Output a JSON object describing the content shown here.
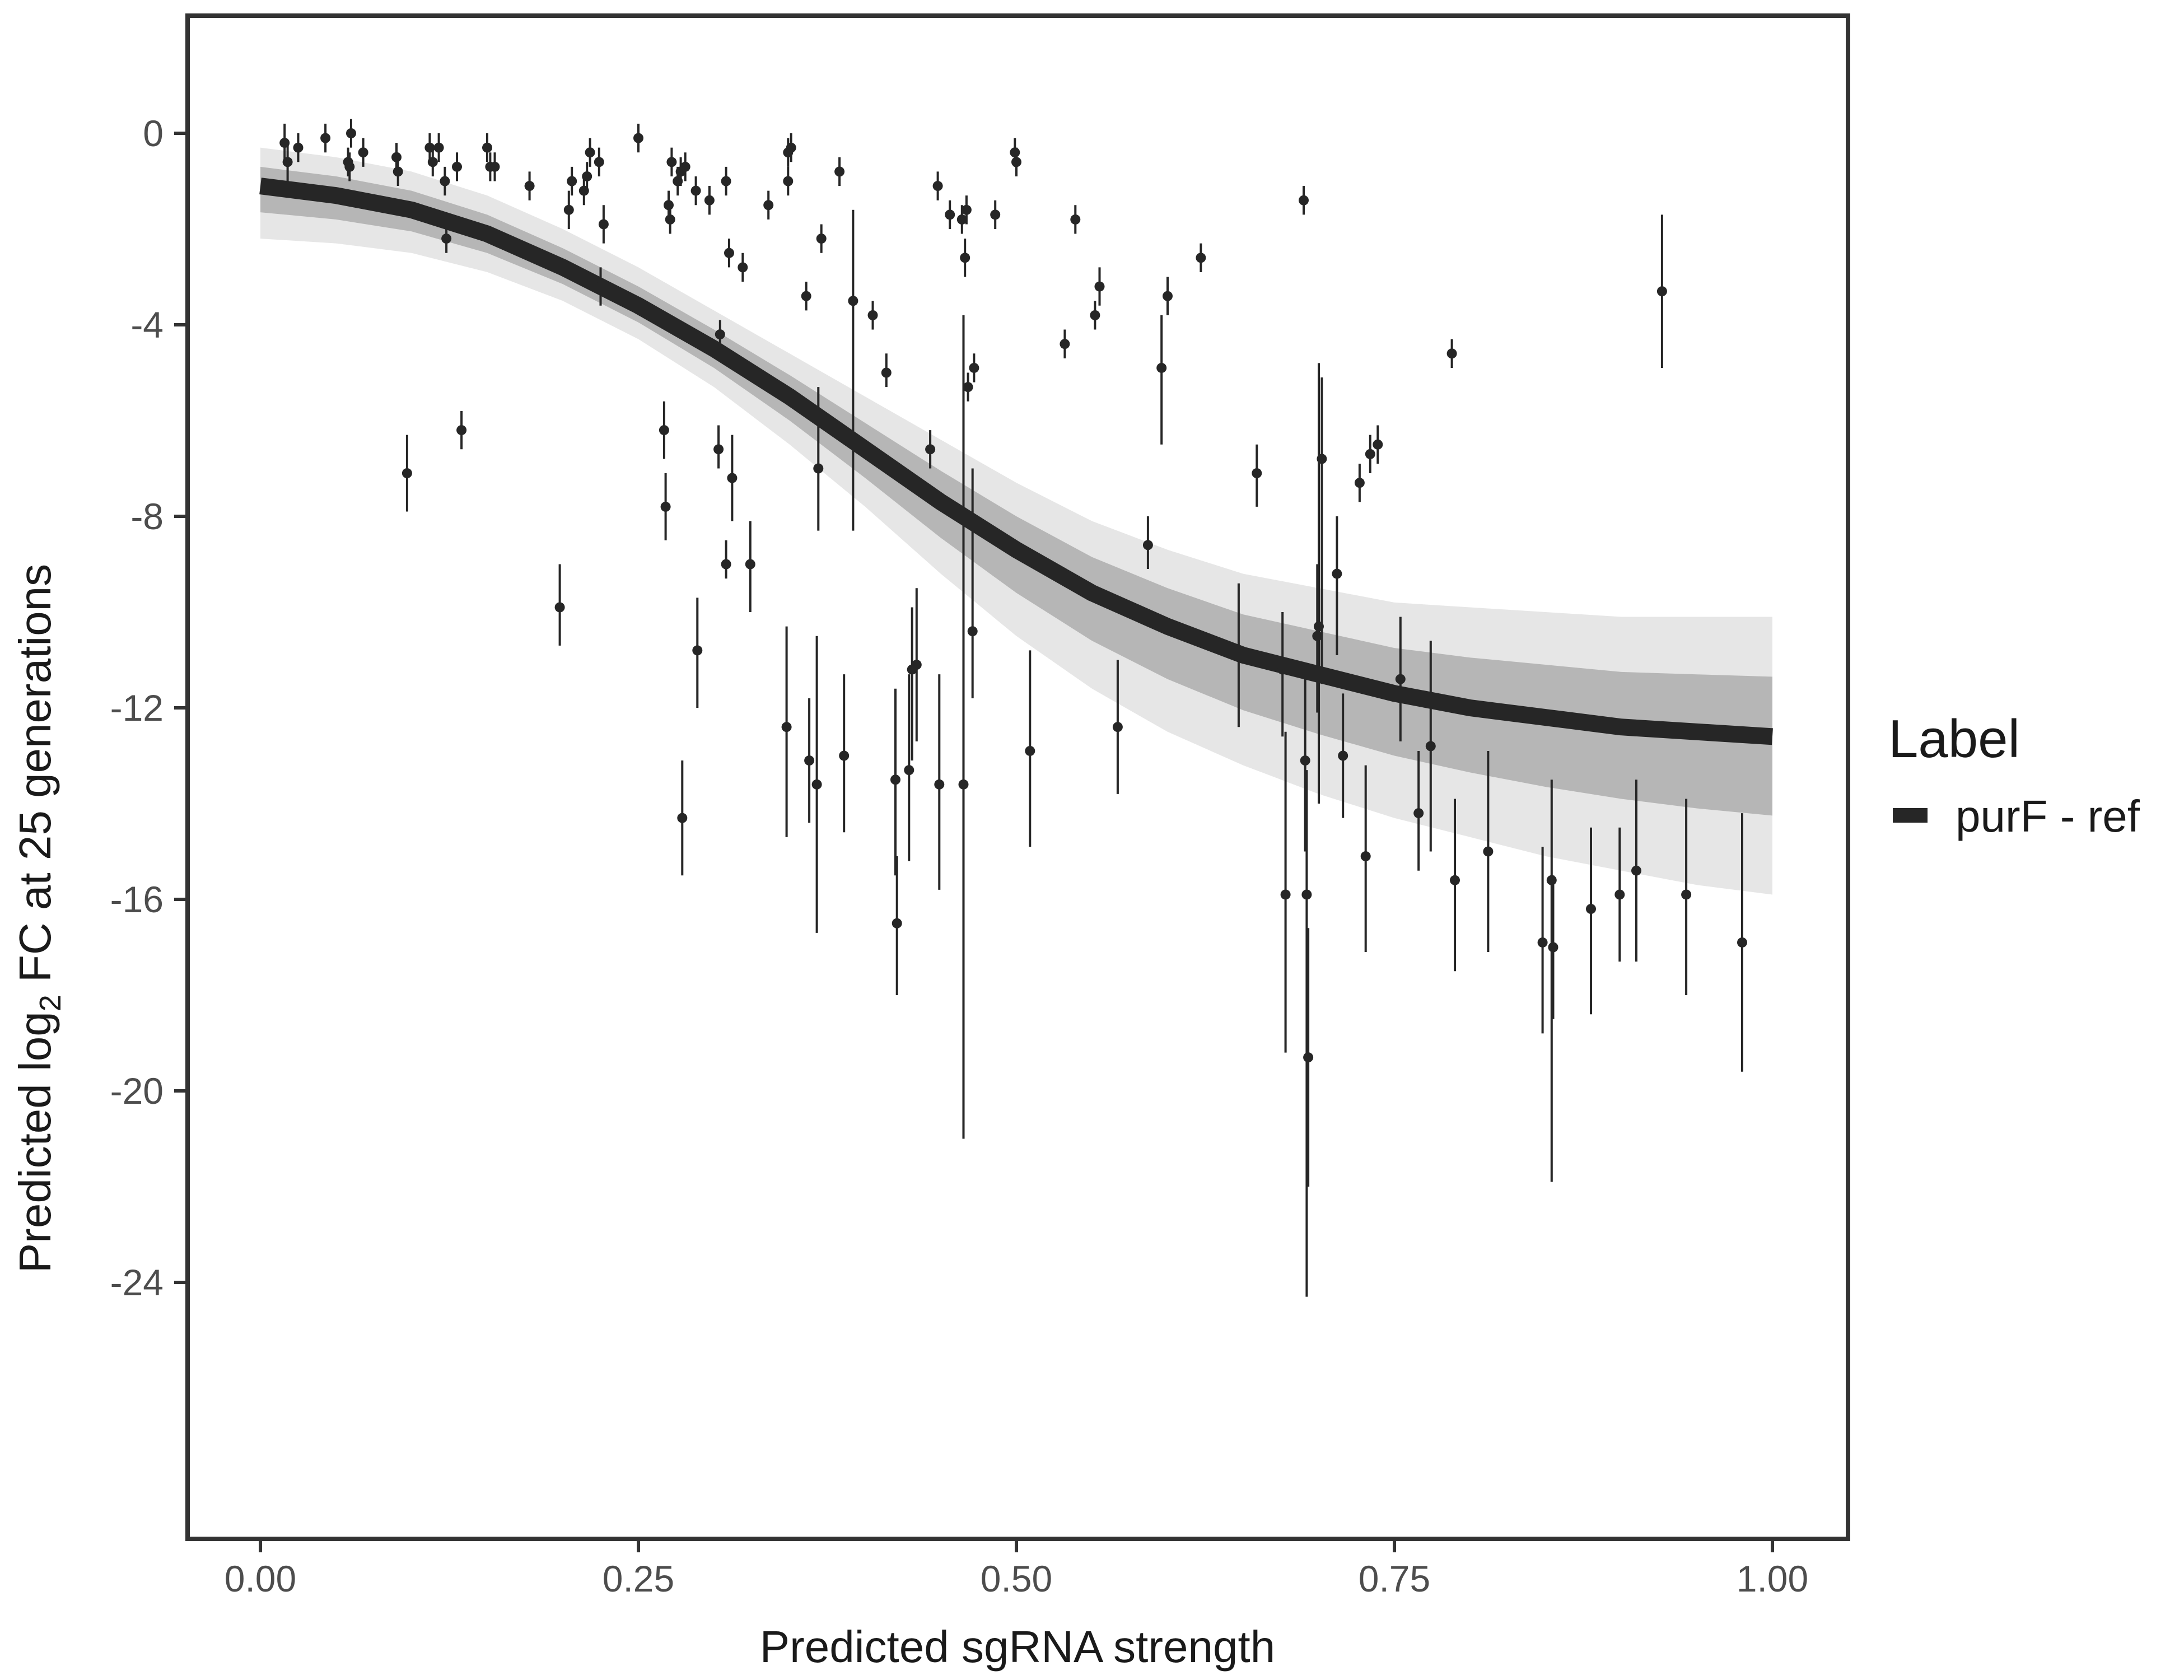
{
  "chart_data": {
    "type": "scatter",
    "title": "",
    "xlabel": "Predicted sgRNA strength",
    "ylabel_parts": {
      "prefix": "Predicted  log",
      "subscript": "2",
      "suffix": " FC at 25 generations"
    },
    "xlim": [
      -0.1,
      2.5
    ],
    "xlim_data": [
      -0.125,
      1.1
    ],
    "ylim": [
      -29.5,
      2.5
    ],
    "x_ticks": [
      0.0,
      0.25,
      0.5,
      0.75,
      1.0
    ],
    "x_tick_labels": [
      "0.00",
      "0.25",
      "0.50",
      "0.75",
      "1.00"
    ],
    "y_ticks": [
      0,
      -4,
      -8,
      -12,
      -16,
      -20,
      -24
    ],
    "y_tick_labels": [
      "0",
      "-4",
      "-8",
      "-12",
      "-16",
      "-20",
      "-24"
    ],
    "grid": false,
    "legend": {
      "title": "Label",
      "position": "right",
      "entries": [
        {
          "name": "purF - ref",
          "color": "#262626"
        }
      ]
    },
    "colors": {
      "fit_line": "#262626",
      "ribbon": "#a6a6a6",
      "points": "#262626",
      "border": "#333333"
    },
    "fit_curve": {
      "name": "purF - ref",
      "x": [
        0.0,
        0.05,
        0.1,
        0.15,
        0.2,
        0.25,
        0.3,
        0.35,
        0.4,
        0.45,
        0.5,
        0.55,
        0.6,
        0.65,
        0.7,
        0.75,
        0.8,
        0.85,
        0.9,
        0.95,
        1.0
      ],
      "y": [
        -1.1,
        -1.3,
        -1.6,
        -2.1,
        -2.8,
        -3.6,
        -4.5,
        -5.5,
        -6.6,
        -7.7,
        -8.7,
        -9.6,
        -10.3,
        -10.9,
        -11.3,
        -11.7,
        -12.0,
        -12.2,
        -12.4,
        -12.5,
        -12.6
      ],
      "lower": [
        -2.2,
        -2.3,
        -2.5,
        -2.9,
        -3.5,
        -4.3,
        -5.3,
        -6.5,
        -7.8,
        -9.2,
        -10.5,
        -11.6,
        -12.5,
        -13.2,
        -13.8,
        -14.3,
        -14.7,
        -15.1,
        -15.4,
        -15.7,
        -15.9
      ],
      "upper": [
        -0.3,
        -0.5,
        -0.8,
        -1.3,
        -2.0,
        -2.8,
        -3.7,
        -4.6,
        -5.5,
        -6.4,
        -7.3,
        -8.1,
        -8.7,
        -9.2,
        -9.5,
        -9.8,
        -9.9,
        -10.0,
        -10.1,
        -10.1,
        -10.1
      ]
    },
    "points": [
      {
        "x": 0.016,
        "y": -0.2,
        "lo": -0.6,
        "hi": 0.2
      },
      {
        "x": 0.018,
        "y": -0.6,
        "lo": -1.0,
        "hi": -0.2
      },
      {
        "x": 0.025,
        "y": -0.3,
        "lo": -0.6,
        "hi": 0.0
      },
      {
        "x": 0.043,
        "y": -0.1,
        "lo": -0.4,
        "hi": 0.2
      },
      {
        "x": 0.058,
        "y": -0.6,
        "lo": -0.9,
        "hi": -0.3
      },
      {
        "x": 0.059,
        "y": -0.7,
        "lo": -1.0,
        "hi": -0.4
      },
      {
        "x": 0.06,
        "y": 0.0,
        "lo": -0.3,
        "hi": 0.3
      },
      {
        "x": 0.068,
        "y": -0.4,
        "lo": -0.7,
        "hi": -0.1
      },
      {
        "x": 0.09,
        "y": -0.5,
        "lo": -0.8,
        "hi": -0.2
      },
      {
        "x": 0.091,
        "y": -0.8,
        "lo": -1.1,
        "hi": -0.5
      },
      {
        "x": 0.097,
        "y": -7.1,
        "lo": -7.9,
        "hi": -6.3
      },
      {
        "x": 0.112,
        "y": -0.3,
        "lo": -0.6,
        "hi": 0.0
      },
      {
        "x": 0.114,
        "y": -0.6,
        "lo": -0.9,
        "hi": -0.3
      },
      {
        "x": 0.118,
        "y": -0.3,
        "lo": -0.6,
        "hi": 0.0
      },
      {
        "x": 0.122,
        "y": -1.0,
        "lo": -1.3,
        "hi": -0.7
      },
      {
        "x": 0.123,
        "y": -2.2,
        "lo": -2.5,
        "hi": -1.9
      },
      {
        "x": 0.13,
        "y": -0.7,
        "lo": -1.0,
        "hi": -0.4
      },
      {
        "x": 0.133,
        "y": -6.2,
        "lo": -6.6,
        "hi": -5.8
      },
      {
        "x": 0.15,
        "y": -0.3,
        "lo": -0.6,
        "hi": 0.0
      },
      {
        "x": 0.152,
        "y": -0.7,
        "lo": -1.0,
        "hi": -0.4
      },
      {
        "x": 0.155,
        "y": -0.7,
        "lo": -1.0,
        "hi": -0.4
      },
      {
        "x": 0.178,
        "y": -1.1,
        "lo": -1.4,
        "hi": -0.8
      },
      {
        "x": 0.198,
        "y": -9.9,
        "lo": -10.7,
        "hi": -9.0
      },
      {
        "x": 0.204,
        "y": -1.6,
        "lo": -2.0,
        "hi": -1.2
      },
      {
        "x": 0.206,
        "y": -1.0,
        "lo": -1.3,
        "hi": -0.7
      },
      {
        "x": 0.214,
        "y": -1.2,
        "lo": -1.5,
        "hi": -0.9
      },
      {
        "x": 0.216,
        "y": -0.9,
        "lo": -1.2,
        "hi": -0.6
      },
      {
        "x": 0.218,
        "y": -0.4,
        "lo": -0.7,
        "hi": -0.1
      },
      {
        "x": 0.224,
        "y": -0.6,
        "lo": -0.9,
        "hi": -0.3
      },
      {
        "x": 0.225,
        "y": -3.2,
        "lo": -3.6,
        "hi": -2.8
      },
      {
        "x": 0.227,
        "y": -1.9,
        "lo": -2.3,
        "hi": -1.5
      },
      {
        "x": 0.25,
        "y": -0.1,
        "lo": -0.4,
        "hi": 0.2
      },
      {
        "x": 0.267,
        "y": -6.2,
        "lo": -6.8,
        "hi": -5.6
      },
      {
        "x": 0.268,
        "y": -7.8,
        "lo": -8.5,
        "hi": -7.1
      },
      {
        "x": 0.27,
        "y": -1.5,
        "lo": -1.8,
        "hi": -1.2
      },
      {
        "x": 0.271,
        "y": -1.8,
        "lo": -2.1,
        "hi": -1.5
      },
      {
        "x": 0.272,
        "y": -0.6,
        "lo": -0.9,
        "hi": -0.3
      },
      {
        "x": 0.276,
        "y": -1.0,
        "lo": -1.3,
        "hi": -0.7
      },
      {
        "x": 0.278,
        "y": -0.8,
        "lo": -1.1,
        "hi": -0.5
      },
      {
        "x": 0.279,
        "y": -14.3,
        "lo": -15.5,
        "hi": -13.1
      },
      {
        "x": 0.281,
        "y": -0.7,
        "lo": -1.0,
        "hi": -0.4
      },
      {
        "x": 0.288,
        "y": -1.2,
        "lo": -1.5,
        "hi": -0.9
      },
      {
        "x": 0.289,
        "y": -10.8,
        "lo": -12.0,
        "hi": -9.7
      },
      {
        "x": 0.297,
        "y": -1.4,
        "lo": -1.7,
        "hi": -1.1
      },
      {
        "x": 0.303,
        "y": -6.6,
        "lo": -7.0,
        "hi": -6.1
      },
      {
        "x": 0.304,
        "y": -4.2,
        "lo": -4.5,
        "hi": -3.9
      },
      {
        "x": 0.308,
        "y": -9.0,
        "lo": -9.3,
        "hi": -8.5
      },
      {
        "x": 0.308,
        "y": -1.0,
        "lo": -1.3,
        "hi": -0.7
      },
      {
        "x": 0.31,
        "y": -2.5,
        "lo": -2.8,
        "hi": -2.2
      },
      {
        "x": 0.312,
        "y": -7.2,
        "lo": -8.1,
        "hi": -6.3
      },
      {
        "x": 0.319,
        "y": -2.8,
        "lo": -3.1,
        "hi": -2.5
      },
      {
        "x": 0.324,
        "y": -9.0,
        "lo": -10.0,
        "hi": -8.1
      },
      {
        "x": 0.336,
        "y": -1.5,
        "lo": -1.8,
        "hi": -1.2
      },
      {
        "x": 0.348,
        "y": -12.4,
        "lo": -14.7,
        "hi": -10.3
      },
      {
        "x": 0.349,
        "y": -0.4,
        "lo": -0.7,
        "hi": -0.1
      },
      {
        "x": 0.349,
        "y": -1.0,
        "lo": -1.3,
        "hi": -0.7
      },
      {
        "x": 0.351,
        "y": -0.3,
        "lo": -0.6,
        "hi": 0.0
      },
      {
        "x": 0.361,
        "y": -3.4,
        "lo": -3.7,
        "hi": -3.1
      },
      {
        "x": 0.363,
        "y": -13.1,
        "lo": -14.4,
        "hi": -11.8
      },
      {
        "x": 0.368,
        "y": -13.6,
        "lo": -16.7,
        "hi": -10.5
      },
      {
        "x": 0.369,
        "y": -7.0,
        "lo": -8.3,
        "hi": -5.3
      },
      {
        "x": 0.371,
        "y": -2.2,
        "lo": -2.5,
        "hi": -1.9
      },
      {
        "x": 0.383,
        "y": -0.8,
        "lo": -1.1,
        "hi": -0.5
      },
      {
        "x": 0.386,
        "y": -13.0,
        "lo": -14.6,
        "hi": -11.3
      },
      {
        "x": 0.392,
        "y": -3.5,
        "lo": -8.3,
        "hi": -1.6
      },
      {
        "x": 0.405,
        "y": -3.8,
        "lo": -4.1,
        "hi": -3.5
      },
      {
        "x": 0.414,
        "y": -5.0,
        "lo": -5.3,
        "hi": -4.6
      },
      {
        "x": 0.42,
        "y": -13.5,
        "lo": -15.5,
        "hi": -11.6
      },
      {
        "x": 0.421,
        "y": -16.5,
        "lo": -18.0,
        "hi": -15.1
      },
      {
        "x": 0.429,
        "y": -13.3,
        "lo": -15.2,
        "hi": -11.3
      },
      {
        "x": 0.431,
        "y": -11.2,
        "lo": -13.1,
        "hi": -9.9
      },
      {
        "x": 0.434,
        "y": -11.1,
        "lo": -12.7,
        "hi": -9.5
      },
      {
        "x": 0.443,
        "y": -6.6,
        "lo": -7.0,
        "hi": -6.2
      },
      {
        "x": 0.448,
        "y": -1.1,
        "lo": -1.4,
        "hi": -0.8
      },
      {
        "x": 0.449,
        "y": -13.6,
        "lo": -15.8,
        "hi": -11.3
      },
      {
        "x": 0.456,
        "y": -1.7,
        "lo": -2.0,
        "hi": -1.4
      },
      {
        "x": 0.464,
        "y": -1.8,
        "lo": -2.1,
        "hi": -1.5
      },
      {
        "x": 0.465,
        "y": -13.6,
        "lo": -21.0,
        "hi": -3.8
      },
      {
        "x": 0.466,
        "y": -2.6,
        "lo": -3.0,
        "hi": -2.2
      },
      {
        "x": 0.467,
        "y": -1.6,
        "lo": -1.9,
        "hi": -1.3
      },
      {
        "x": 0.468,
        "y": -5.3,
        "lo": -5.6,
        "hi": -5.0
      },
      {
        "x": 0.471,
        "y": -10.4,
        "lo": -11.8,
        "hi": -7.0
      },
      {
        "x": 0.472,
        "y": -4.9,
        "lo": -5.2,
        "hi": -4.6
      },
      {
        "x": 0.486,
        "y": -1.7,
        "lo": -2.0,
        "hi": -1.4
      },
      {
        "x": 0.499,
        "y": -0.4,
        "lo": -0.7,
        "hi": -0.1
      },
      {
        "x": 0.5,
        "y": -0.6,
        "lo": -0.9,
        "hi": -0.3
      },
      {
        "x": 0.509,
        "y": -12.9,
        "lo": -14.9,
        "hi": -10.8
      },
      {
        "x": 0.532,
        "y": -4.4,
        "lo": -4.7,
        "hi": -4.1
      },
      {
        "x": 0.539,
        "y": -1.8,
        "lo": -2.1,
        "hi": -1.5
      },
      {
        "x": 0.552,
        "y": -3.8,
        "lo": -4.1,
        "hi": -3.5
      },
      {
        "x": 0.555,
        "y": -3.2,
        "lo": -3.6,
        "hi": -2.8
      },
      {
        "x": 0.567,
        "y": -12.4,
        "lo": -13.8,
        "hi": -11.0
      },
      {
        "x": 0.587,
        "y": -8.6,
        "lo": -9.1,
        "hi": -8.0
      },
      {
        "x": 0.596,
        "y": -4.9,
        "lo": -6.5,
        "hi": -3.8
      },
      {
        "x": 0.6,
        "y": -3.4,
        "lo": -3.8,
        "hi": -3.0
      },
      {
        "x": 0.622,
        "y": -2.6,
        "lo": -2.9,
        "hi": -2.3
      },
      {
        "x": 0.647,
        "y": -10.9,
        "lo": -12.4,
        "hi": -9.4
      },
      {
        "x": 0.659,
        "y": -7.1,
        "lo": -7.8,
        "hi": -6.5
      },
      {
        "x": 0.676,
        "y": -11.2,
        "lo": -12.6,
        "hi": -10.0
      },
      {
        "x": 0.678,
        "y": -15.9,
        "lo": -19.2,
        "hi": -12.5
      },
      {
        "x": 0.69,
        "y": -1.4,
        "lo": -1.7,
        "hi": -1.1
      },
      {
        "x": 0.691,
        "y": -13.1,
        "lo": -15.0,
        "hi": -11.2
      },
      {
        "x": 0.692,
        "y": -15.9,
        "lo": -24.3,
        "hi": -13.3
      },
      {
        "x": 0.693,
        "y": -19.3,
        "lo": -22.0,
        "hi": -16.6
      },
      {
        "x": 0.699,
        "y": -10.5,
        "lo": -12.1,
        "hi": -9.0
      },
      {
        "x": 0.7,
        "y": -10.3,
        "lo": -14.0,
        "hi": -4.8
      },
      {
        "x": 0.702,
        "y": -6.8,
        "lo": -11.5,
        "hi": -5.1
      },
      {
        "x": 0.712,
        "y": -9.2,
        "lo": -10.9,
        "hi": -8.0
      },
      {
        "x": 0.716,
        "y": -13.0,
        "lo": -14.3,
        "hi": -11.7
      },
      {
        "x": 0.727,
        "y": -7.3,
        "lo": -7.7,
        "hi": -6.9
      },
      {
        "x": 0.731,
        "y": -15.1,
        "lo": -17.1,
        "hi": -13.2
      },
      {
        "x": 0.734,
        "y": -6.7,
        "lo": -7.1,
        "hi": -6.3
      },
      {
        "x": 0.739,
        "y": -6.5,
        "lo": -6.9,
        "hi": -6.1
      },
      {
        "x": 0.754,
        "y": -11.4,
        "lo": -12.7,
        "hi": -10.1
      },
      {
        "x": 0.766,
        "y": -14.2,
        "lo": -15.4,
        "hi": -12.9
      },
      {
        "x": 0.774,
        "y": -12.8,
        "lo": -15.0,
        "hi": -10.6
      },
      {
        "x": 0.788,
        "y": -4.6,
        "lo": -4.9,
        "hi": -4.3
      },
      {
        "x": 0.79,
        "y": -15.6,
        "lo": -17.5,
        "hi": -13.9
      },
      {
        "x": 0.812,
        "y": -15.0,
        "lo": -17.1,
        "hi": -12.9
      },
      {
        "x": 0.848,
        "y": -16.9,
        "lo": -18.8,
        "hi": -14.9
      },
      {
        "x": 0.854,
        "y": -15.6,
        "lo": -21.9,
        "hi": -13.5
      },
      {
        "x": 0.855,
        "y": -17.0,
        "lo": -18.5,
        "hi": -15.5
      },
      {
        "x": 0.88,
        "y": -16.2,
        "lo": -18.4,
        "hi": -14.5
      },
      {
        "x": 0.899,
        "y": -15.9,
        "lo": -17.3,
        "hi": -14.5
      },
      {
        "x": 0.91,
        "y": -15.4,
        "lo": -17.3,
        "hi": -13.5
      },
      {
        "x": 0.927,
        "y": -3.3,
        "lo": -4.9,
        "hi": -1.7
      },
      {
        "x": 0.943,
        "y": -15.9,
        "lo": -18.0,
        "hi": -13.9
      },
      {
        "x": 0.98,
        "y": -16.9,
        "lo": -19.6,
        "hi": -14.2
      }
    ]
  }
}
